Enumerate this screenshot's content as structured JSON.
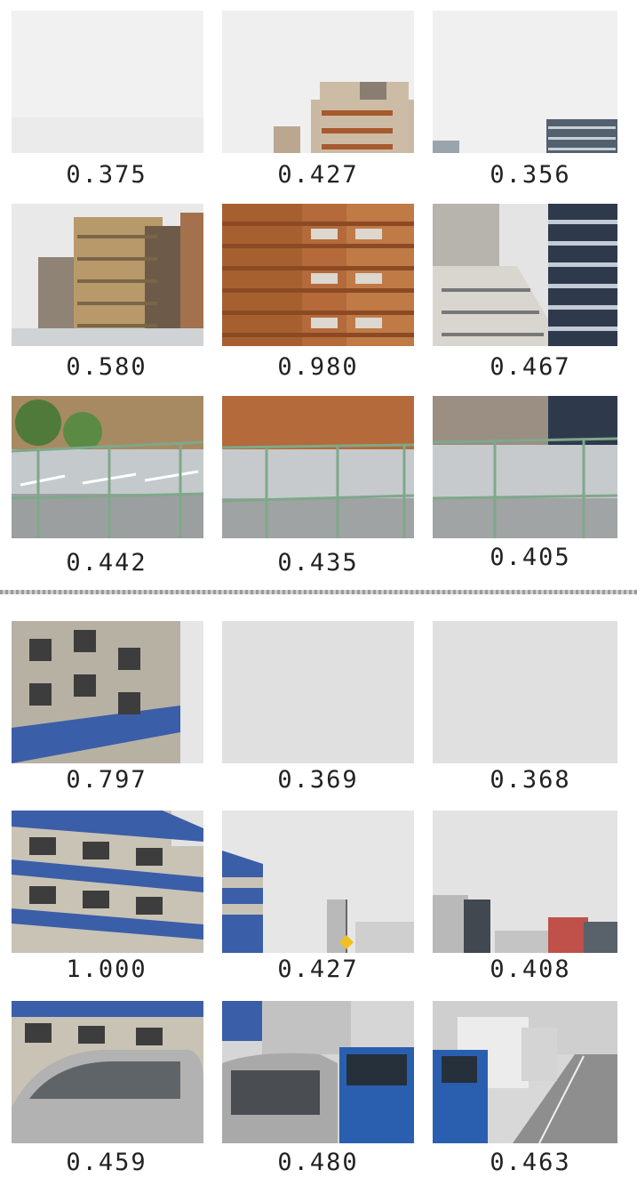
{
  "groups": [
    {
      "rows": [
        {
          "cells": [
            {
              "score": "0.375",
              "scene": "overcast-sky"
            },
            {
              "score": "0.427",
              "scene": "building-rooftop"
            },
            {
              "score": "0.356",
              "scene": "sky-glass-tower-edge"
            }
          ]
        },
        {
          "cells": [
            {
              "score": "0.580",
              "scene": "tan-apartment-blocks"
            },
            {
              "score": "0.980",
              "scene": "brick-apartment-building"
            },
            {
              "score": "0.467",
              "scene": "white-building-glass-tower"
            }
          ]
        },
        {
          "cells": [
            {
              "score": "0.442",
              "scene": "overpass-fence-trees"
            },
            {
              "score": "0.435",
              "scene": "overpass-fence-brick"
            },
            {
              "score": "0.405",
              "scene": "overpass-fence-glass"
            }
          ]
        }
      ]
    },
    {
      "rows": [
        {
          "cells": [
            {
              "score": "0.797",
              "scene": "blue-white-apartment"
            },
            {
              "score": "0.369",
              "scene": "gray-sky"
            },
            {
              "score": "0.368",
              "scene": "gray-sky"
            }
          ]
        },
        {
          "cells": [
            {
              "score": "1.000",
              "scene": "blue-striped-apartment"
            },
            {
              "score": "0.427",
              "scene": "sky-streetlight-buildings"
            },
            {
              "score": "0.408",
              "scene": "city-skyline"
            }
          ]
        },
        {
          "cells": [
            {
              "score": "0.459",
              "scene": "silver-suv"
            },
            {
              "score": "0.480",
              "scene": "car-and-blue-truck"
            },
            {
              "score": "0.463",
              "scene": "road-with-trucks"
            }
          ]
        }
      ]
    }
  ],
  "colors": {
    "sky": "#ededed",
    "gray_sky": "#e0e0e0",
    "brick": "#b46a3a",
    "tan": "#b89a6a",
    "blue_stripe": "#3b5ea8",
    "fence": "#7fa88a",
    "road": "#9a9a9a"
  }
}
